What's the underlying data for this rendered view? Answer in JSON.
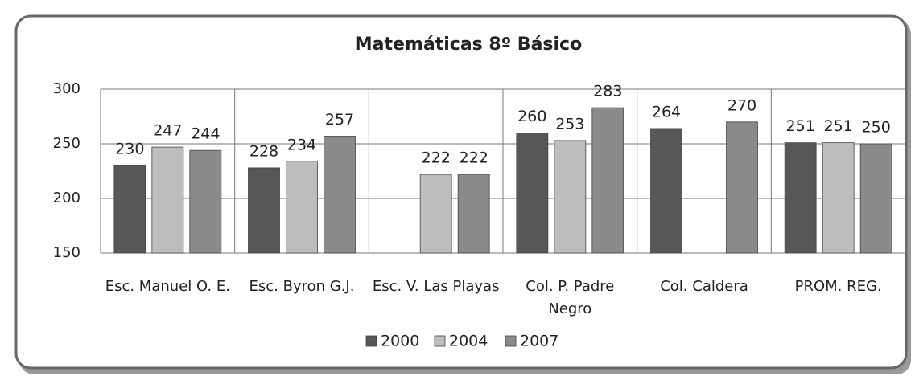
{
  "chart_data": {
    "type": "bar",
    "title": "Matemáticas 8º Básico",
    "categories": [
      "Esc. Manuel O. E.",
      "Esc. Byron G.J.",
      "Esc. V. Las Playas",
      "Col. P. Padre Negro",
      "Col. Caldera",
      "PROM. REG."
    ],
    "series": [
      {
        "name": "2000",
        "color": "#575757",
        "values": [
          230,
          228,
          null,
          260,
          264,
          251
        ]
      },
      {
        "name": "2004",
        "color": "#bdbdbd",
        "values": [
          247,
          234,
          222,
          253,
          null,
          251
        ]
      },
      {
        "name": "2007",
        "color": "#8a8a8a",
        "values": [
          244,
          257,
          222,
          283,
          270,
          250
        ]
      }
    ],
    "ylim": [
      150,
      300
    ],
    "yticks": [
      150,
      200,
      250,
      300
    ],
    "grid": true,
    "legend": "bottom"
  }
}
